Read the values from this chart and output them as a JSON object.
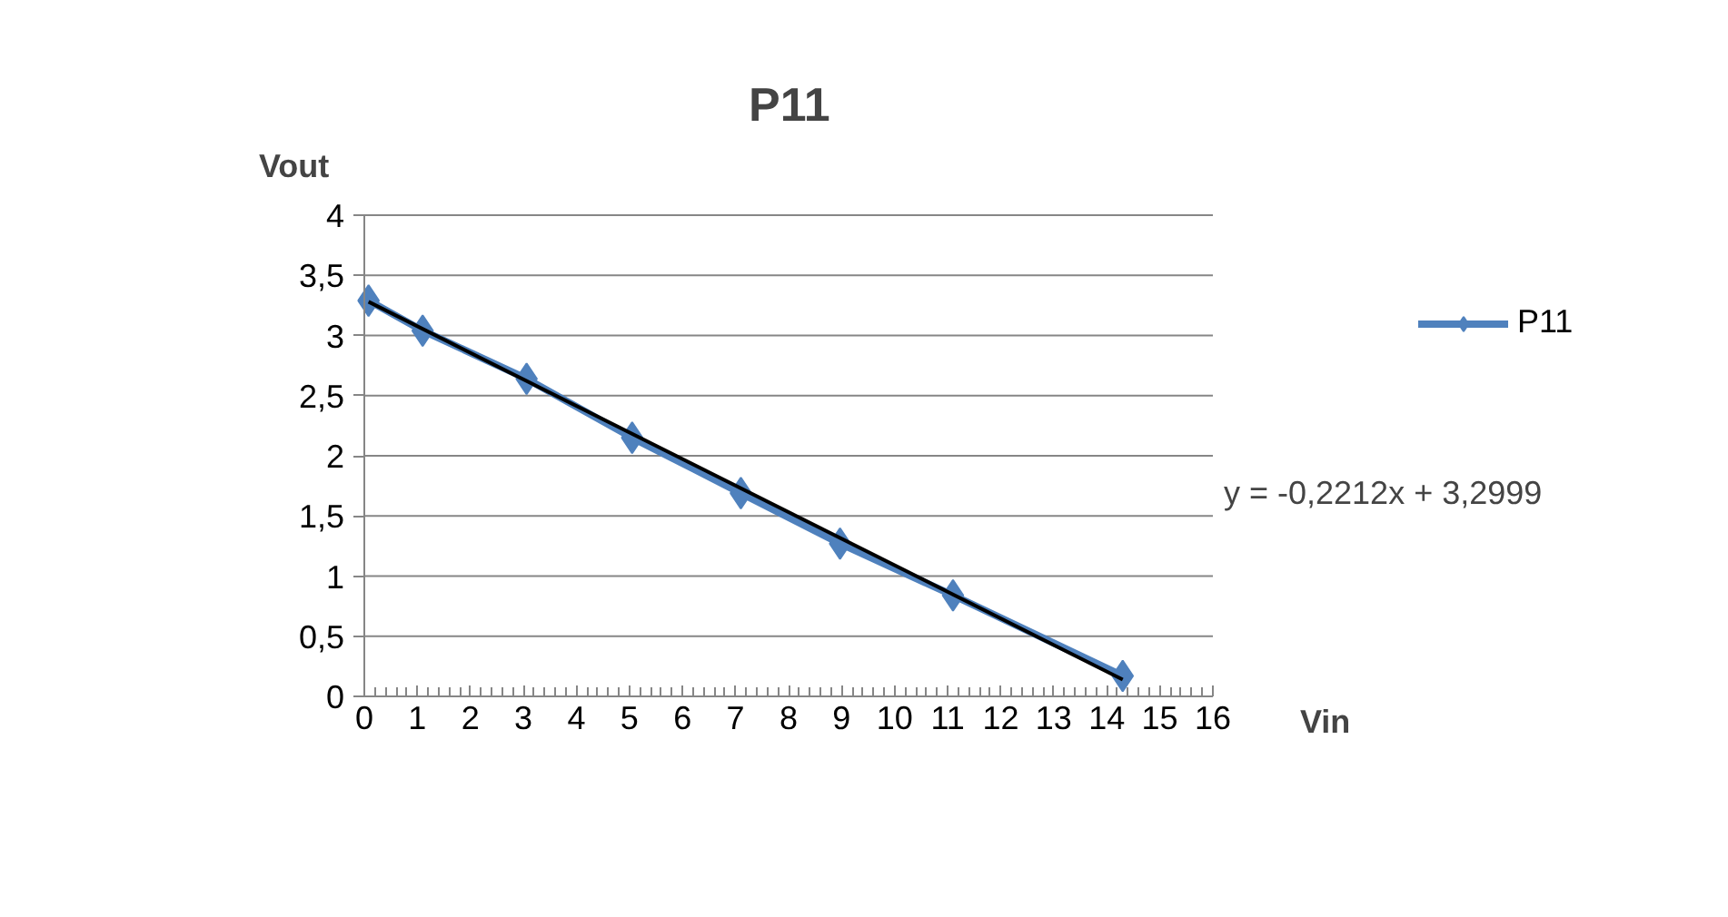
{
  "chart_data": {
    "type": "line",
    "title": "P11",
    "xlabel": "Vin",
    "ylabel": "Vout",
    "x": [
      0.08,
      1.1,
      3.06,
      5.05,
      7.1,
      8.97,
      11.1,
      14.3
    ],
    "series": [
      {
        "name": "P11",
        "color": "#4f81bd",
        "values": [
          3.29,
          3.04,
          2.64,
          2.15,
          1.69,
          1.27,
          0.84,
          0.17
        ],
        "marker": "diamond"
      },
      {
        "type": "line",
        "color": "#000000",
        "x": [
          0.08,
          14.3
        ],
        "values": [
          3.28,
          0.14
        ],
        "marker": "none"
      }
    ],
    "annotations": [
      "y = -0,2212x + 3,2999"
    ],
    "xlim": [
      0,
      16
    ],
    "xticks": [
      0,
      1,
      2,
      3,
      4,
      5,
      6,
      7,
      8,
      9,
      10,
      11,
      12,
      13,
      14,
      15,
      16
    ],
    "ylim": [
      0,
      4
    ],
    "yticks": [
      0,
      {
        "value": 0.5,
        "label": "0,5"
      },
      1,
      {
        "value": 1.5,
        "label": "1,5"
      },
      2,
      {
        "value": 2.5,
        "label": "2,5"
      },
      3,
      {
        "value": 3.5,
        "label": "3,5"
      },
      4
    ],
    "grid": "y",
    "legend": "right",
    "line_style": "solid"
  }
}
